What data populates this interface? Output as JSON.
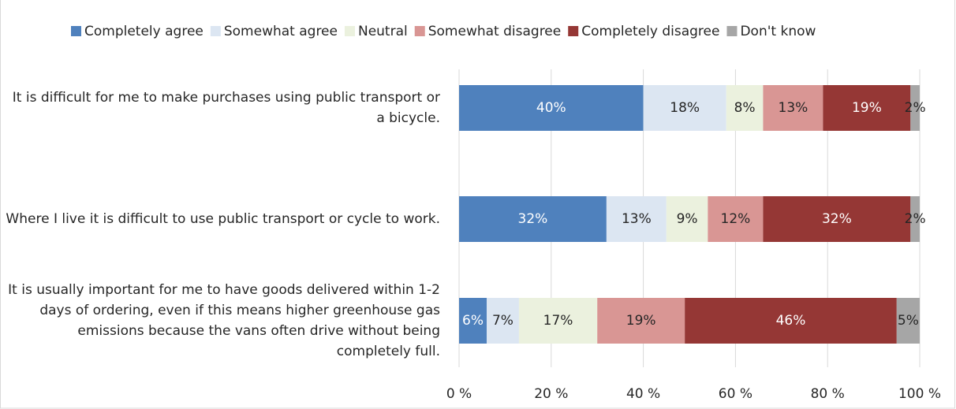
{
  "chart_data": {
    "type": "stacked-bar-horizontal",
    "categories": [
      "It is difficult for me to make purchases using public transport or a bicycle.",
      "Where I live it is difficult to use public transport or cycle to work.",
      "It is usually important for me to have goods delivered within 1-2 days of ordering, even if this means higher greenhouse gas emissions because the vans often drive without being completely full."
    ],
    "series": [
      {
        "name": "Completely agree",
        "color": "#4f81bd",
        "values": [
          40,
          32,
          6
        ],
        "value_labels": [
          "40%",
          "32%",
          "6%"
        ]
      },
      {
        "name": "Somewhat agree",
        "color": "#dce6f2",
        "values": [
          18,
          13,
          7
        ],
        "value_labels": [
          "18%",
          "13%",
          "7%"
        ]
      },
      {
        "name": "Neutral",
        "color": "#ebf1de",
        "values": [
          8,
          9,
          17
        ],
        "value_labels": [
          "8%",
          "9%",
          "17%"
        ]
      },
      {
        "name": "Somewhat disagree",
        "color": "#d99694",
        "values": [
          13,
          12,
          19
        ],
        "value_labels": [
          "13%",
          "12%",
          "19%"
        ]
      },
      {
        "name": "Completely disagree",
        "color": "#953735",
        "values": [
          19,
          32,
          46
        ],
        "value_labels": [
          "19%",
          "32%",
          "46%"
        ]
      },
      {
        "name": "Don't know",
        "color": "#a6a6a6",
        "values": [
          2,
          2,
          5
        ],
        "value_labels": [
          "2%",
          "2%",
          "5%"
        ]
      }
    ],
    "xlim": [
      0,
      100
    ],
    "xticks": [
      {
        "value": 0,
        "label": "0 %"
      },
      {
        "value": 20,
        "label": "20 %"
      },
      {
        "value": 40,
        "label": "40 %"
      },
      {
        "value": 60,
        "label": "60 %"
      },
      {
        "value": 80,
        "label": "80 %"
      },
      {
        "value": 100,
        "label": "100 %"
      }
    ],
    "grid": true,
    "legend": "top"
  }
}
